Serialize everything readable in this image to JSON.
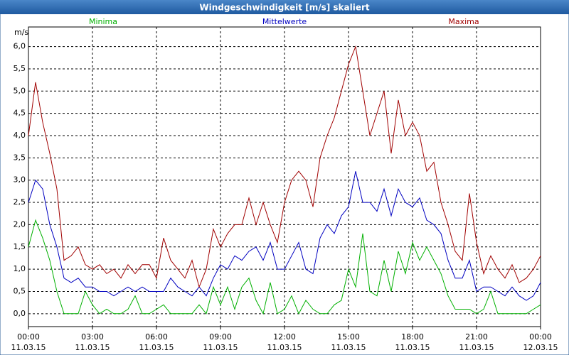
{
  "chart_data": {
    "type": "line",
    "title": "Windgeschwindigkeit [m/s] skaliert",
    "y_label": "m/s",
    "x": [
      0,
      20,
      40,
      60,
      80,
      100,
      120,
      140,
      160,
      180,
      200,
      220,
      240,
      260,
      280,
      300,
      320,
      340,
      360,
      380,
      400,
      420,
      440,
      460,
      480,
      500,
      520,
      540,
      560,
      580,
      600,
      620,
      640,
      660,
      680,
      700,
      720,
      740,
      760,
      780,
      800,
      820,
      840,
      860,
      880,
      900,
      920,
      940,
      960,
      980,
      1000,
      1020,
      1040,
      1060,
      1080,
      1100,
      1120,
      1140,
      1160,
      1180,
      1200,
      1220,
      1240,
      1260,
      1280,
      1300,
      1320,
      1340,
      1360,
      1380,
      1400,
      1420,
      1440
    ],
    "series": [
      {
        "name": "Minima",
        "color": "#00b000",
        "values": [
          1.5,
          2.1,
          1.7,
          1.2,
          0.5,
          0.0,
          0.0,
          0.0,
          0.5,
          0.2,
          0.0,
          0.1,
          0.0,
          0.0,
          0.1,
          0.4,
          0.0,
          0.0,
          0.1,
          0.2,
          0.0,
          0.0,
          0.0,
          0.0,
          0.2,
          0.0,
          0.6,
          0.2,
          0.6,
          0.1,
          0.6,
          0.8,
          0.3,
          0.0,
          0.7,
          0.0,
          0.1,
          0.4,
          0.0,
          0.3,
          0.1,
          0.0,
          0.0,
          0.2,
          0.3,
          1.0,
          0.6,
          1.8,
          0.5,
          0.4,
          1.2,
          0.5,
          1.4,
          0.9,
          1.6,
          1.2,
          1.5,
          1.2,
          0.9,
          0.4,
          0.1,
          0.1,
          0.1,
          0.0,
          0.1,
          0.5,
          0.0,
          0.0,
          0.0,
          0.0,
          0.0,
          0.1,
          0.2
        ]
      },
      {
        "name": "Mittelwerte",
        "color": "#0000c0",
        "values": [
          2.5,
          3.0,
          2.8,
          2.0,
          1.5,
          0.8,
          0.7,
          0.8,
          0.6,
          0.6,
          0.5,
          0.5,
          0.4,
          0.5,
          0.6,
          0.5,
          0.6,
          0.5,
          0.5,
          0.5,
          0.8,
          0.6,
          0.5,
          0.4,
          0.6,
          0.4,
          0.8,
          1.1,
          1.0,
          1.3,
          1.2,
          1.4,
          1.5,
          1.2,
          1.6,
          1.0,
          1.0,
          1.3,
          1.6,
          1.0,
          0.9,
          1.7,
          2.0,
          1.8,
          2.2,
          2.4,
          3.2,
          2.5,
          2.5,
          2.3,
          2.8,
          2.2,
          2.8,
          2.5,
          2.4,
          2.6,
          2.1,
          2.0,
          1.8,
          1.2,
          0.8,
          0.8,
          1.2,
          0.5,
          0.6,
          0.6,
          0.5,
          0.4,
          0.6,
          0.4,
          0.3,
          0.4,
          0.7
        ]
      },
      {
        "name": "Maxima",
        "color": "#a00000",
        "values": [
          4.0,
          5.2,
          4.3,
          3.6,
          2.8,
          1.2,
          1.3,
          1.5,
          1.1,
          1.0,
          1.1,
          0.9,
          1.0,
          0.8,
          1.1,
          0.9,
          1.1,
          1.1,
          0.8,
          1.7,
          1.2,
          1.0,
          0.8,
          1.2,
          0.6,
          1.0,
          1.9,
          1.5,
          1.8,
          2.0,
          2.0,
          2.6,
          2.0,
          2.5,
          2.0,
          1.6,
          2.5,
          3.0,
          3.2,
          3.0,
          2.4,
          3.5,
          4.0,
          4.4,
          5.0,
          5.6,
          6.0,
          5.0,
          4.0,
          4.5,
          5.0,
          3.6,
          4.8,
          4.0,
          4.3,
          4.0,
          3.2,
          3.4,
          2.5,
          2.0,
          1.4,
          1.2,
          2.7,
          1.6,
          0.9,
          1.3,
          1.0,
          0.8,
          1.1,
          0.7,
          0.8,
          1.0,
          1.3
        ]
      }
    ],
    "xlim": [
      0,
      1440
    ],
    "xticks": [
      {
        "value": 0,
        "label": "00:00"
      },
      {
        "value": 180,
        "label": "03:00"
      },
      {
        "value": 360,
        "label": "06:00"
      },
      {
        "value": 540,
        "label": "09:00"
      },
      {
        "value": 720,
        "label": "12:00"
      },
      {
        "value": 900,
        "label": "15:00"
      },
      {
        "value": 1080,
        "label": "18:00"
      },
      {
        "value": 1260,
        "label": "21:00"
      },
      {
        "value": 1440,
        "label": "00:00"
      }
    ],
    "xtick_dates": [
      "11.03.15",
      "11.03.15",
      "11.03.15",
      "11.03.15",
      "11.03.15",
      "11.03.15",
      "11.03.15",
      "11.03.15",
      "12.03.15"
    ],
    "ylim": [
      -0.29,
      6.44
    ],
    "yticks": [
      {
        "value": 0,
        "label": "0,0"
      },
      {
        "value": 0.5,
        "label": "0,5"
      },
      {
        "value": 1,
        "label": "1,0"
      },
      {
        "value": 1.5,
        "label": "1,5"
      },
      {
        "value": 2,
        "label": "2,0"
      },
      {
        "value": 2.5,
        "label": "2,5"
      },
      {
        "value": 3,
        "label": "3,0"
      },
      {
        "value": 3.5,
        "label": "3,5"
      },
      {
        "value": 4,
        "label": "4,0"
      },
      {
        "value": 4.5,
        "label": "4,5"
      },
      {
        "value": 5,
        "label": "5,0"
      },
      {
        "value": 5.5,
        "label": "5,5"
      },
      {
        "value": 6,
        "label": "6,0"
      }
    ],
    "grid": true
  }
}
